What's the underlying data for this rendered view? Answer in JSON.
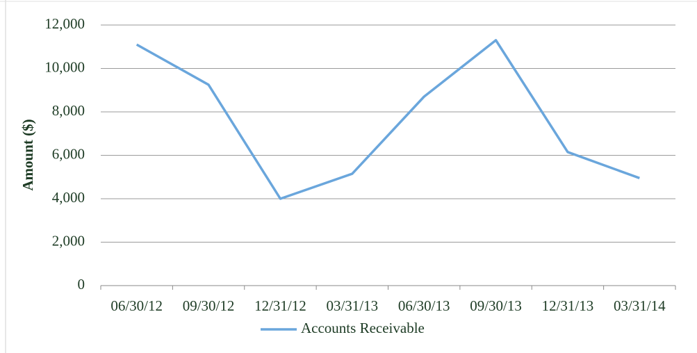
{
  "chart_data": {
    "type": "line",
    "y_label": "Amount ($)",
    "categories": [
      "06/30/12",
      "09/30/12",
      "12/31/12",
      "03/31/13",
      "06/30/13",
      "09/30/13",
      "12/31/13",
      "03/31/14"
    ],
    "series": [
      {
        "name": "Accounts Receivable",
        "color": "#6aa6dc",
        "values": [
          11100,
          9250,
          4000,
          5150,
          8700,
          11300,
          6150,
          4950
        ]
      }
    ],
    "ylim": [
      0,
      12000
    ],
    "yticks": [
      0,
      {
        "value": 2000,
        "label": "2,000"
      },
      {
        "value": 4000,
        "label": "4,000"
      },
      {
        "value": 6000,
        "label": "6,000"
      },
      {
        "value": 8000,
        "label": "8,000"
      },
      {
        "value": 10000,
        "label": "10,000"
      },
      {
        "value": 12000,
        "label": "12,000"
      }
    ],
    "grid": true,
    "legend": "bottom"
  }
}
